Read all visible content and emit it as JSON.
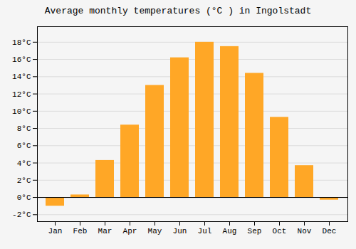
{
  "chart_data": {
    "type": "bar",
    "title": "Average monthly temperatures (°C ) in Ingolstadt",
    "categories": [
      "Jan",
      "Feb",
      "Mar",
      "Apr",
      "May",
      "Jun",
      "Jul",
      "Aug",
      "Sep",
      "Oct",
      "Nov",
      "Dec"
    ],
    "values": [
      -1.0,
      0.3,
      4.3,
      8.4,
      13.0,
      16.2,
      18.0,
      17.5,
      14.4,
      9.3,
      3.7,
      -0.3
    ],
    "color": "#FFA726",
    "ylim": [
      -2.8,
      19.8
    ],
    "yticks": [
      {
        "value": -2,
        "label": "-2°C"
      },
      {
        "value": 0,
        "label": "0°C"
      },
      {
        "value": 2,
        "label": "2°C"
      },
      {
        "value": 4,
        "label": "4°C"
      },
      {
        "value": 6,
        "label": "6°C"
      },
      {
        "value": 8,
        "label": "8°C"
      },
      {
        "value": 10,
        "label": "10°C"
      },
      {
        "value": 12,
        "label": "12°C"
      },
      {
        "value": 14,
        "label": "14°C"
      },
      {
        "value": 16,
        "label": "16°C"
      },
      {
        "value": 18,
        "label": "18°C"
      }
    ],
    "grid": true
  }
}
